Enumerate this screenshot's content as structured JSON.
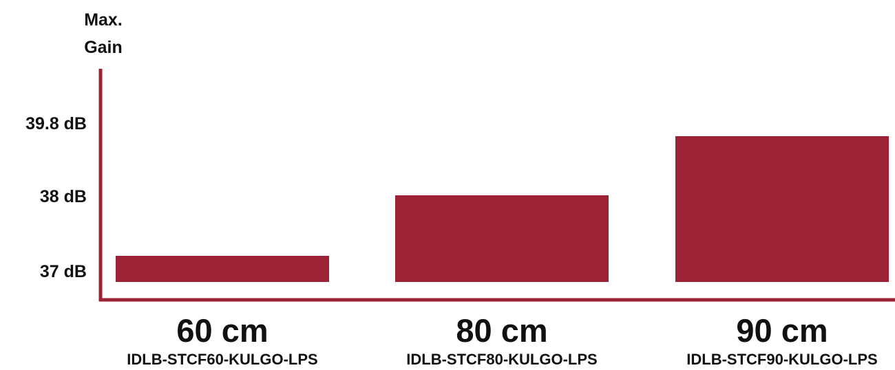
{
  "chart_data": {
    "type": "bar",
    "categories": [
      "60 cm",
      "80 cm",
      "90 cm"
    ],
    "sub_labels": [
      "IDLB-STCF60-KULGO-LPS",
      "IDLB-STCF80-KULGO-LPS",
      "IDLB-STCF90-KULGO-LPS"
    ],
    "values": [
      37.3,
      38.0,
      39.0
    ],
    "ylabel": [
      "Max.",
      "Gain"
    ],
    "ytick_labels": [
      "39.8 dB",
      "38 dB",
      "37 dB"
    ],
    "yticks": [
      39.8,
      38,
      37
    ],
    "grid": false,
    "legend": "none",
    "colors": {
      "bar": "#9b2335",
      "axis": "#9b2335",
      "text": "#111111"
    }
  }
}
